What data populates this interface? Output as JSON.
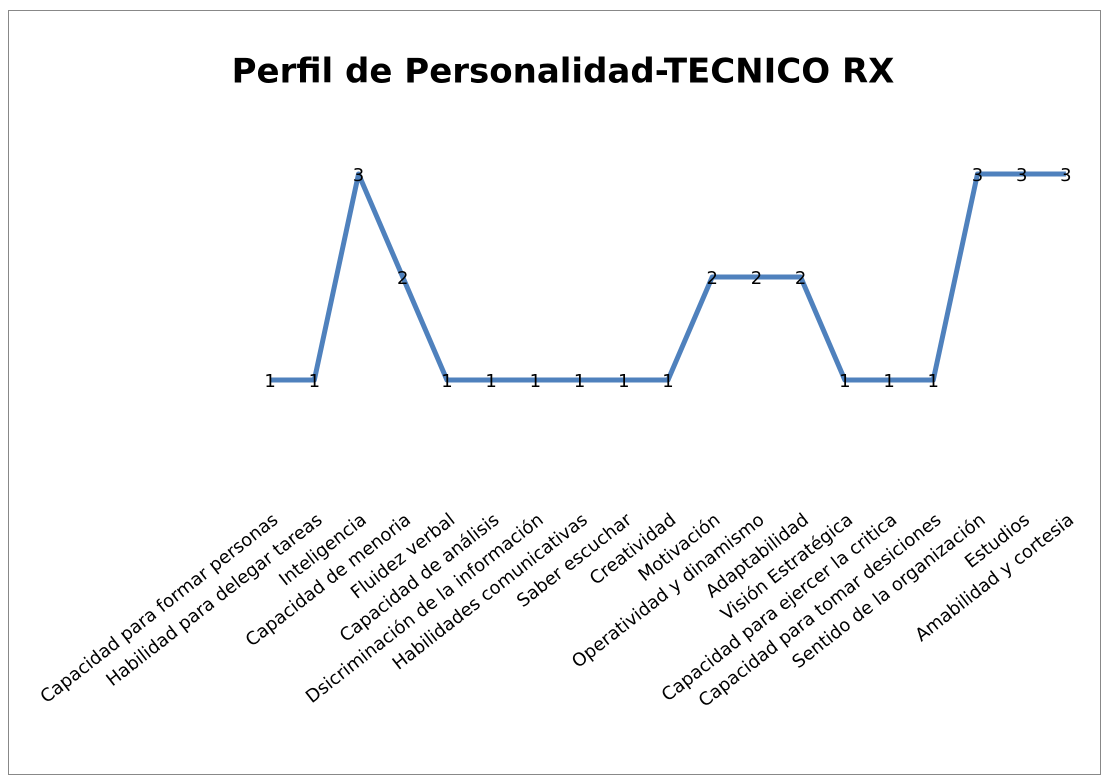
{
  "chart_data": {
    "type": "line",
    "title": "Perfil de Personalidad-TECNICO RX",
    "categories": [
      "Capacidad para formar personas",
      "Habilidad para delegar tareas",
      "Inteligencia",
      "Capacidad de menoria",
      "Fluidez verbal",
      "Capacidad de análisis",
      "Dsicriminación de la información",
      "Habilidades comunicativas",
      "Saber escuchar",
      "Creatividad",
      "Motivación",
      "Operatividad y dinamismo",
      "Adaptabilidad",
      "Visión Estratégica",
      "Capacidad para ejercer la critica",
      "Capacidad para tomar desiciones",
      "Sentido de la organización",
      "Estudios",
      "Amabilidad y cortesia"
    ],
    "values": [
      1,
      1,
      3,
      2,
      1,
      1,
      1,
      1,
      1,
      1,
      2,
      2,
      2,
      1,
      1,
      1,
      3,
      3,
      3
    ],
    "color": "#4f81bd",
    "ylim": [
      0,
      4
    ]
  }
}
